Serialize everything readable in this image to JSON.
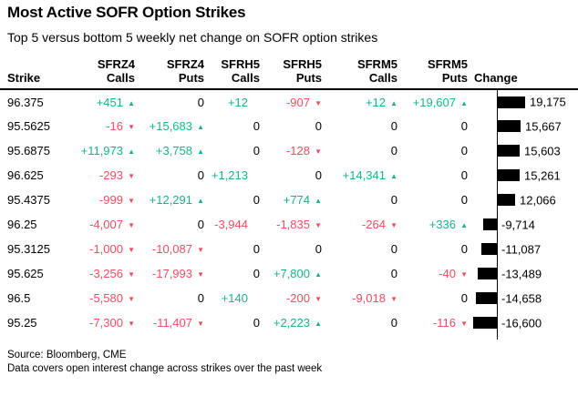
{
  "title": "Most Active SOFR Option Strikes",
  "subtitle": "Top 5 versus bottom 5 weekly net change on SOFR option strikes",
  "colors": {
    "positive": "#1ab28a",
    "negative": "#f04d60",
    "bar": "#000000"
  },
  "icons": {
    "up_arrow": "▲",
    "down_arrow": "▼"
  },
  "table": {
    "columns": [
      {
        "key": "strike",
        "line1": "",
        "line2": "Strike",
        "align": "left"
      },
      {
        "key": "sfrz4-calls",
        "line1": "SFRZ4",
        "line2": "Calls",
        "align": "right"
      },
      {
        "key": "sfrz4-puts",
        "line1": "SFRZ4",
        "line2": "Puts",
        "align": "right"
      },
      {
        "key": "sfrh5-calls",
        "line1": "SFRH5",
        "line2": "Calls",
        "align": "right"
      },
      {
        "key": "sfrh5-puts",
        "line1": "SFRH5",
        "line2": "Puts",
        "align": "right"
      },
      {
        "key": "sfrm5-calls",
        "line1": "SFRM5",
        "line2": "Calls",
        "align": "right"
      },
      {
        "key": "sfrm5-puts",
        "line1": "SFRM5",
        "line2": "Puts",
        "align": "right"
      },
      {
        "key": "change",
        "line1": "",
        "line2": "Change",
        "align": "left"
      }
    ],
    "bar_max_value": 19175,
    "bar_max_width": 30,
    "rows": [
      {
        "strike": "96.375",
        "cells": [
          {
            "t": "+451",
            "a": "up",
            "c": "pos"
          },
          {
            "t": "0"
          },
          {
            "t": "+12",
            "a": "none",
            "c": "pos"
          },
          {
            "t": "-907",
            "a": "down",
            "c": "neg"
          },
          {
            "t": "+12",
            "a": "up",
            "c": "pos"
          },
          {
            "t": "+19,607",
            "a": "up",
            "c": "pos"
          }
        ],
        "change": {
          "v": 19175,
          "label": "19,175"
        }
      },
      {
        "strike": "95.5625",
        "cells": [
          {
            "t": "-16",
            "a": "down",
            "c": "neg"
          },
          {
            "t": "+15,683",
            "a": "up",
            "c": "pos"
          },
          {
            "t": "0"
          },
          {
            "t": "0"
          },
          {
            "t": "0"
          },
          {
            "t": "0"
          }
        ],
        "change": {
          "v": 15667,
          "label": "15,667"
        }
      },
      {
        "strike": "95.6875",
        "cells": [
          {
            "t": "+11,973",
            "a": "up",
            "c": "pos"
          },
          {
            "t": "+3,758",
            "a": "up",
            "c": "pos"
          },
          {
            "t": "0"
          },
          {
            "t": "-128",
            "a": "down",
            "c": "neg"
          },
          {
            "t": "0"
          },
          {
            "t": "0"
          }
        ],
        "change": {
          "v": 15603,
          "label": "15,603"
        }
      },
      {
        "strike": "96.625",
        "cells": [
          {
            "t": "-293",
            "a": "down",
            "c": "neg"
          },
          {
            "t": "0"
          },
          {
            "t": "+1,213",
            "a": "none",
            "c": "pos"
          },
          {
            "t": "0"
          },
          {
            "t": "+14,341",
            "a": "up",
            "c": "pos"
          },
          {
            "t": "0"
          }
        ],
        "change": {
          "v": 15261,
          "label": "15,261"
        }
      },
      {
        "strike": "95.4375",
        "cells": [
          {
            "t": "-999",
            "a": "down",
            "c": "neg"
          },
          {
            "t": "+12,291",
            "a": "up",
            "c": "pos"
          },
          {
            "t": "0"
          },
          {
            "t": "+774",
            "a": "up",
            "c": "pos"
          },
          {
            "t": "0"
          },
          {
            "t": "0"
          }
        ],
        "change": {
          "v": 12066,
          "label": "12,066"
        }
      },
      {
        "strike": "96.25",
        "cells": [
          {
            "t": "-4,007",
            "a": "down",
            "c": "neg"
          },
          {
            "t": "0"
          },
          {
            "t": "-3,944",
            "a": "none",
            "c": "neg"
          },
          {
            "t": "-1,835",
            "a": "down",
            "c": "neg"
          },
          {
            "t": "-264",
            "a": "down",
            "c": "neg"
          },
          {
            "t": "+336",
            "a": "up",
            "c": "pos"
          }
        ],
        "change": {
          "v": -9714,
          "label": "-9,714"
        }
      },
      {
        "strike": "95.3125",
        "cells": [
          {
            "t": "-1,000",
            "a": "down",
            "c": "neg"
          },
          {
            "t": "-10,087",
            "a": "down",
            "c": "neg"
          },
          {
            "t": "0"
          },
          {
            "t": "0"
          },
          {
            "t": "0"
          },
          {
            "t": "0"
          }
        ],
        "change": {
          "v": -11087,
          "label": "-11,087"
        }
      },
      {
        "strike": "95.625",
        "cells": [
          {
            "t": "-3,256",
            "a": "down",
            "c": "neg"
          },
          {
            "t": "-17,993",
            "a": "down",
            "c": "neg"
          },
          {
            "t": "0"
          },
          {
            "t": "+7,800",
            "a": "up",
            "c": "pos"
          },
          {
            "t": "0"
          },
          {
            "t": "-40",
            "a": "down",
            "c": "neg"
          }
        ],
        "change": {
          "v": -13489,
          "label": "-13,489"
        }
      },
      {
        "strike": "96.5",
        "cells": [
          {
            "t": "-5,580",
            "a": "down",
            "c": "neg"
          },
          {
            "t": "0"
          },
          {
            "t": "+140",
            "a": "none",
            "c": "pos"
          },
          {
            "t": "-200",
            "a": "down",
            "c": "neg"
          },
          {
            "t": "-9,018",
            "a": "down",
            "c": "neg"
          },
          {
            "t": "0"
          }
        ],
        "change": {
          "v": -14658,
          "label": "-14,658"
        }
      },
      {
        "strike": "95.25",
        "cells": [
          {
            "t": "-7,300",
            "a": "down",
            "c": "neg"
          },
          {
            "t": "-11,407",
            "a": "down",
            "c": "neg"
          },
          {
            "t": "0"
          },
          {
            "t": "+2,223",
            "a": "up",
            "c": "pos"
          },
          {
            "t": "0"
          },
          {
            "t": "-116",
            "a": "down",
            "c": "neg"
          }
        ],
        "change": {
          "v": -16600,
          "label": "-16,600"
        }
      }
    ]
  },
  "footer": {
    "source": "Source: Bloomberg, CME",
    "note": "Data covers open interest change across strikes over the past week"
  },
  "chart_data": {
    "type": "table",
    "title": "Most Active SOFR Option Strikes",
    "subtitle": "Top 5 versus bottom 5 weekly net change on SOFR option strikes",
    "columns": [
      "Strike",
      "SFRZ4 Calls",
      "SFRZ4 Puts",
      "SFRH5 Calls",
      "SFRH5 Puts",
      "SFRM5 Calls",
      "SFRM5 Puts",
      "Change"
    ],
    "rows": [
      [
        "96.375",
        451,
        0,
        12,
        -907,
        12,
        19607,
        19175
      ],
      [
        "95.5625",
        -16,
        15683,
        0,
        0,
        0,
        0,
        15667
      ],
      [
        "95.6875",
        11973,
        3758,
        0,
        -128,
        0,
        0,
        15603
      ],
      [
        "96.625",
        -293,
        0,
        1213,
        0,
        14341,
        0,
        15261
      ],
      [
        "95.4375",
        -999,
        12291,
        0,
        774,
        0,
        0,
        12066
      ],
      [
        "96.25",
        -4007,
        0,
        -3944,
        -1835,
        -264,
        336,
        -9714
      ],
      [
        "95.3125",
        -1000,
        -10087,
        0,
        0,
        0,
        0,
        -11087
      ],
      [
        "95.625",
        -3256,
        -17993,
        0,
        7800,
        0,
        -40,
        -13489
      ],
      [
        "96.5",
        -5580,
        0,
        140,
        -200,
        -9018,
        0,
        -14658
      ],
      [
        "95.25",
        -7300,
        -11407,
        0,
        2223,
        0,
        -116,
        -16600
      ]
    ],
    "bar_column": "Change",
    "bar_axis_max": 19175,
    "notes": "Change column rendered as black bars from a vertical zero axis; positive bars extend right, negative bars extend left"
  }
}
